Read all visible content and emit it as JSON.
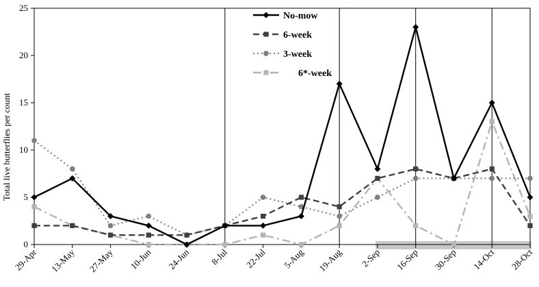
{
  "chart_data": {
    "type": "line",
    "title": "",
    "xlabel": "",
    "ylabel": "Total live  butterflies  per count",
    "ylim": [
      0,
      25
    ],
    "yticks": [
      0,
      5,
      10,
      15,
      20,
      25
    ],
    "grid": false,
    "legend_position": "top-center",
    "categories": [
      "29-Apr",
      "13-May",
      "27-May",
      "10-Jun",
      "24-Jun",
      "8-Jul",
      "22-Jul",
      "5-Aug",
      "19-Aug",
      "2-Sep",
      "16-Sep",
      "30-Sep",
      "14-Oct",
      "28-Oct"
    ],
    "vertical_markers_at": [
      "8-Jul",
      "19-Aug",
      "16-Sep",
      "14-Oct"
    ],
    "shaded_band": {
      "from": "2-Sep",
      "to": "28-Oct",
      "color": "#c8c8c8"
    },
    "series": [
      {
        "name": "No-mow",
        "color": "#000000",
        "marker": "diamond",
        "dash": "solid",
        "values": [
          5,
          7,
          3,
          2,
          0,
          2,
          2,
          3,
          17,
          8,
          23,
          7,
          15,
          5
        ]
      },
      {
        "name": "6-week",
        "color": "#404040",
        "marker": "square",
        "dash": "dash",
        "values": [
          2,
          2,
          1,
          1,
          1,
          2,
          3,
          5,
          4,
          7,
          8,
          7,
          8,
          2
        ]
      },
      {
        "name": "3-week",
        "color": "#808080",
        "marker": "circle",
        "dash": "dot",
        "values": [
          11,
          8,
          2,
          3,
          1,
          2,
          5,
          4,
          3,
          5,
          7,
          7,
          7,
          7
        ]
      },
      {
        "name": "6*-week",
        "color": "#b4b4b4",
        "marker": "square",
        "dash": "dashdot",
        "values": [
          4,
          2,
          1,
          0,
          0,
          0,
          1,
          0,
          2,
          7,
          2,
          0,
          13,
          3
        ]
      }
    ]
  }
}
